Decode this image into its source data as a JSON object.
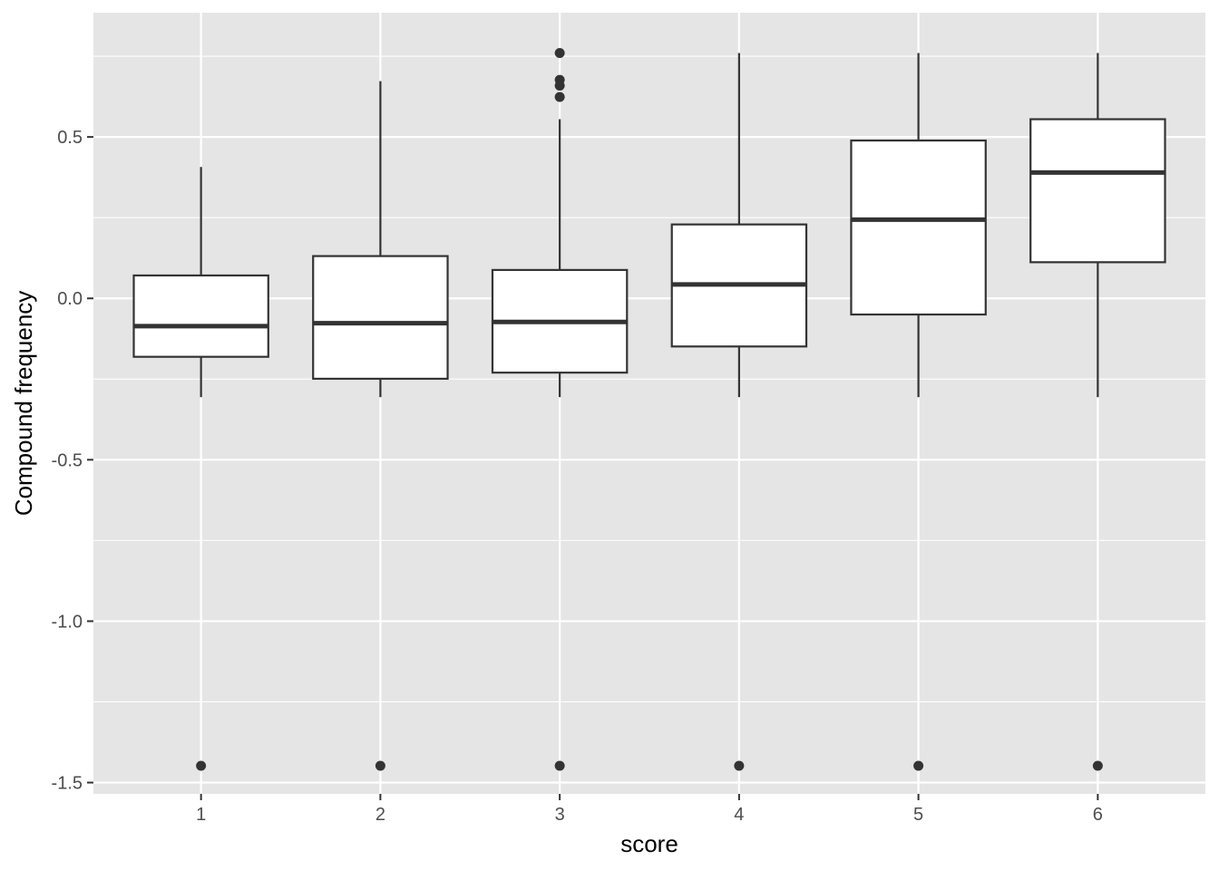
{
  "chart_data": {
    "type": "boxplot",
    "xlabel": "score",
    "ylabel": "Compound frequency",
    "categories": [
      "1",
      "2",
      "3",
      "4",
      "5",
      "6"
    ],
    "ylim": [
      -1.535,
      0.885
    ],
    "yticks": [
      -1.5,
      -1.0,
      -0.5,
      0.0,
      0.5
    ],
    "ytick_labels": [
      "-1.5",
      "-1.0",
      "-0.5",
      "0.0",
      "0.5"
    ],
    "grid": true,
    "colors": {
      "panel": "#e5e5e5",
      "grid": "#ffffff",
      "box_fill": "#ffffff",
      "box_line": "#333333",
      "outlier": "#333333"
    },
    "boxes": [
      {
        "category": "1",
        "whisker_low": -0.306,
        "q1": -0.181,
        "median": -0.086,
        "q3": 0.071,
        "whisker_high": 0.407,
        "outliers": [
          -1.448
        ]
      },
      {
        "category": "2",
        "whisker_low": -0.306,
        "q1": -0.249,
        "median": -0.077,
        "q3": 0.131,
        "whisker_high": 0.673,
        "outliers": [
          -1.448
        ]
      },
      {
        "category": "3",
        "whisker_low": -0.306,
        "q1": -0.23,
        "median": -0.073,
        "q3": 0.088,
        "whisker_high": 0.555,
        "outliers": [
          0.76,
          0.677,
          0.659,
          0.624,
          -1.448
        ]
      },
      {
        "category": "4",
        "whisker_low": -0.306,
        "q1": -0.149,
        "median": 0.043,
        "q3": 0.229,
        "whisker_high": 0.76,
        "outliers": [
          -1.448
        ]
      },
      {
        "category": "5",
        "whisker_low": -0.306,
        "q1": -0.05,
        "median": 0.244,
        "q3": 0.489,
        "whisker_high": 0.76,
        "outliers": [
          -1.448
        ]
      },
      {
        "category": "6",
        "whisker_low": -0.306,
        "q1": 0.112,
        "median": 0.39,
        "q3": 0.555,
        "whisker_high": 0.76,
        "outliers": [
          -1.448
        ]
      }
    ]
  }
}
